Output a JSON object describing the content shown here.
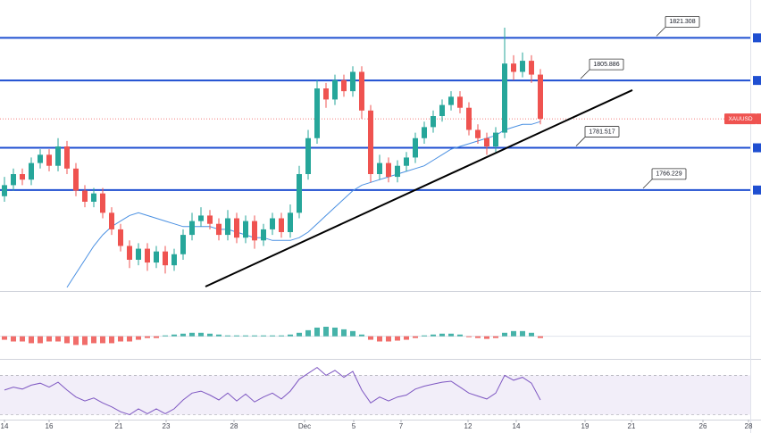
{
  "chart_data": {
    "type": "candlestick",
    "symbol": "XAUUSD",
    "xlim": [
      -0.5,
      83.5
    ],
    "xticks": [
      {
        "value": 0,
        "label": "14"
      },
      {
        "value": 5,
        "label": "16"
      },
      {
        "value": 12.8,
        "label": "21"
      },
      {
        "value": 18.1,
        "label": "23"
      },
      {
        "value": 25.7,
        "label": "28"
      },
      {
        "value": 33.6,
        "label": "Dec"
      },
      {
        "value": 39.1,
        "label": "5"
      },
      {
        "value": 44.4,
        "label": "7"
      },
      {
        "value": 51.9,
        "label": "12"
      },
      {
        "value": 57.3,
        "label": "14"
      },
      {
        "value": 65,
        "label": "19"
      },
      {
        "value": 70.2,
        "label": "21"
      },
      {
        "value": 78.2,
        "label": "26"
      },
      {
        "value": 83.3,
        "label": "28"
      }
    ],
    "ylim": [
      1730,
      1835
    ],
    "up_color": "#26a69a",
    "down_color": "#ef5350",
    "ohlc": [
      [
        1764,
        1771,
        1762,
        1768
      ],
      [
        1768,
        1774,
        1766,
        1772
      ],
      [
        1772,
        1774,
        1768,
        1770
      ],
      [
        1770,
        1778,
        1768,
        1776
      ],
      [
        1776,
        1781,
        1774,
        1779
      ],
      [
        1779,
        1781,
        1773,
        1775
      ],
      [
        1775,
        1785,
        1773,
        1782
      ],
      [
        1782,
        1784,
        1772,
        1774
      ],
      [
        1774,
        1776,
        1764,
        1766
      ],
      [
        1766,
        1768,
        1760,
        1762
      ],
      [
        1762,
        1767,
        1760,
        1765
      ],
      [
        1765,
        1767,
        1756,
        1758
      ],
      [
        1758,
        1760,
        1750,
        1752
      ],
      [
        1752,
        1754,
        1744,
        1746
      ],
      [
        1746,
        1748,
        1738,
        1741
      ],
      [
        1741,
        1747,
        1739,
        1745
      ],
      [
        1745,
        1747,
        1737,
        1740
      ],
      [
        1740,
        1746,
        1738,
        1744
      ],
      [
        1744,
        1746,
        1736,
        1739
      ],
      [
        1739,
        1745,
        1737,
        1743
      ],
      [
        1743,
        1752,
        1741,
        1750
      ],
      [
        1750,
        1758,
        1748,
        1755
      ],
      [
        1755,
        1760,
        1753,
        1757
      ],
      [
        1757,
        1759,
        1752,
        1754
      ],
      [
        1754,
        1756,
        1748,
        1750
      ],
      [
        1750,
        1759,
        1748,
        1756
      ],
      [
        1756,
        1758,
        1747,
        1749
      ],
      [
        1749,
        1757,
        1747,
        1755
      ],
      [
        1755,
        1757,
        1745,
        1748
      ],
      [
        1748,
        1754,
        1746,
        1752
      ],
      [
        1752,
        1758,
        1750,
        1756
      ],
      [
        1756,
        1758,
        1749,
        1751
      ],
      [
        1751,
        1761,
        1749,
        1758
      ],
      [
        1758,
        1775,
        1756,
        1772
      ],
      [
        1772,
        1788,
        1770,
        1785
      ],
      [
        1785,
        1806,
        1783,
        1803
      ],
      [
        1803,
        1805,
        1796,
        1799
      ],
      [
        1799,
        1808,
        1797,
        1806
      ],
      [
        1806,
        1808,
        1800,
        1802
      ],
      [
        1802,
        1811,
        1800,
        1809
      ],
      [
        1809,
        1811,
        1792,
        1795
      ],
      [
        1795,
        1797,
        1769,
        1772
      ],
      [
        1772,
        1779,
        1770,
        1776
      ],
      [
        1776,
        1778,
        1769,
        1771
      ],
      [
        1771,
        1777,
        1769,
        1775
      ],
      [
        1775,
        1780,
        1773,
        1778
      ],
      [
        1778,
        1787,
        1776,
        1785
      ],
      [
        1785,
        1791,
        1783,
        1789
      ],
      [
        1789,
        1795,
        1787,
        1793
      ],
      [
        1793,
        1799,
        1791,
        1797
      ],
      [
        1797,
        1802,
        1795,
        1800
      ],
      [
        1800,
        1802,
        1794,
        1796
      ],
      [
        1796,
        1798,
        1786,
        1788
      ],
      [
        1788,
        1790,
        1783,
        1785
      ],
      [
        1785,
        1787,
        1779,
        1782
      ],
      [
        1782,
        1789,
        1780,
        1787
      ],
      [
        1787,
        1825,
        1785,
        1812
      ],
      [
        1812,
        1815,
        1806,
        1809
      ],
      [
        1809,
        1816,
        1807,
        1813
      ],
      [
        1813,
        1815,
        1805,
        1808
      ],
      [
        1808,
        1810,
        1790,
        1792
      ]
    ],
    "moving_average": {
      "color": "#4a90e2",
      "values": [
        null,
        null,
        null,
        null,
        null,
        null,
        null,
        1731,
        1736,
        1741,
        1746,
        1750,
        1753,
        1755,
        1757,
        1758,
        1757,
        1756,
        1755,
        1754,
        1753,
        1753,
        1753,
        1753,
        1752,
        1752,
        1751,
        1750,
        1749,
        1749,
        1748,
        1748,
        1748,
        1749,
        1751,
        1754,
        1757,
        1760,
        1763,
        1766,
        1768,
        1769,
        1770,
        1771,
        1772,
        1773,
        1774,
        1775,
        1777,
        1779,
        1781,
        1782,
        1783,
        1784,
        1785,
        1786,
        1788,
        1789,
        1790,
        1790,
        1791
      ]
    },
    "levels": [
      1821.308,
      1805.886,
      1781.517,
      1766.229
    ],
    "level_color": "#1f4fd1",
    "trendline": {
      "x": [
        22.5,
        70.3
      ],
      "y": [
        1731.3,
        1802.4
      ],
      "color": "#000000"
    },
    "macd": {
      "type": "bar",
      "ylim": [
        -1.2,
        2.4
      ],
      "values": [
        -0.2,
        -0.3,
        -0.3,
        -0.4,
        -0.4,
        -0.3,
        -0.3,
        -0.4,
        -0.5,
        -0.5,
        -0.4,
        -0.4,
        -0.4,
        -0.3,
        -0.3,
        -0.2,
        -0.1,
        -0.1,
        0.05,
        0.1,
        0.15,
        0.2,
        0.2,
        0.15,
        0.1,
        0.05,
        0.05,
        0.05,
        0.05,
        0.05,
        0.05,
        0.05,
        0.1,
        0.2,
        0.35,
        0.5,
        0.55,
        0.5,
        0.4,
        0.3,
        0.1,
        -0.2,
        -0.3,
        -0.3,
        -0.25,
        -0.2,
        -0.1,
        0.05,
        0.1,
        0.15,
        0.15,
        0.1,
        -0.05,
        -0.1,
        -0.15,
        -0.1,
        0.2,
        0.3,
        0.3,
        0.2,
        -0.1
      ]
    },
    "rsi": {
      "type": "line",
      "ylim": [
        25,
        84
      ],
      "band": [
        30,
        70
      ],
      "color": "#7e57c2",
      "values": [
        55,
        58,
        56,
        60,
        62,
        58,
        63,
        55,
        48,
        44,
        47,
        42,
        38,
        33,
        30,
        36,
        31,
        36,
        31,
        36,
        45,
        52,
        54,
        50,
        45,
        52,
        44,
        51,
        43,
        48,
        52,
        46,
        54,
        66,
        72,
        78,
        70,
        75,
        68,
        74,
        55,
        42,
        48,
        44,
        48,
        50,
        56,
        59,
        61,
        63,
        64,
        58,
        52,
        49,
        46,
        52,
        70,
        65,
        68,
        62,
        45
      ]
    }
  }
}
